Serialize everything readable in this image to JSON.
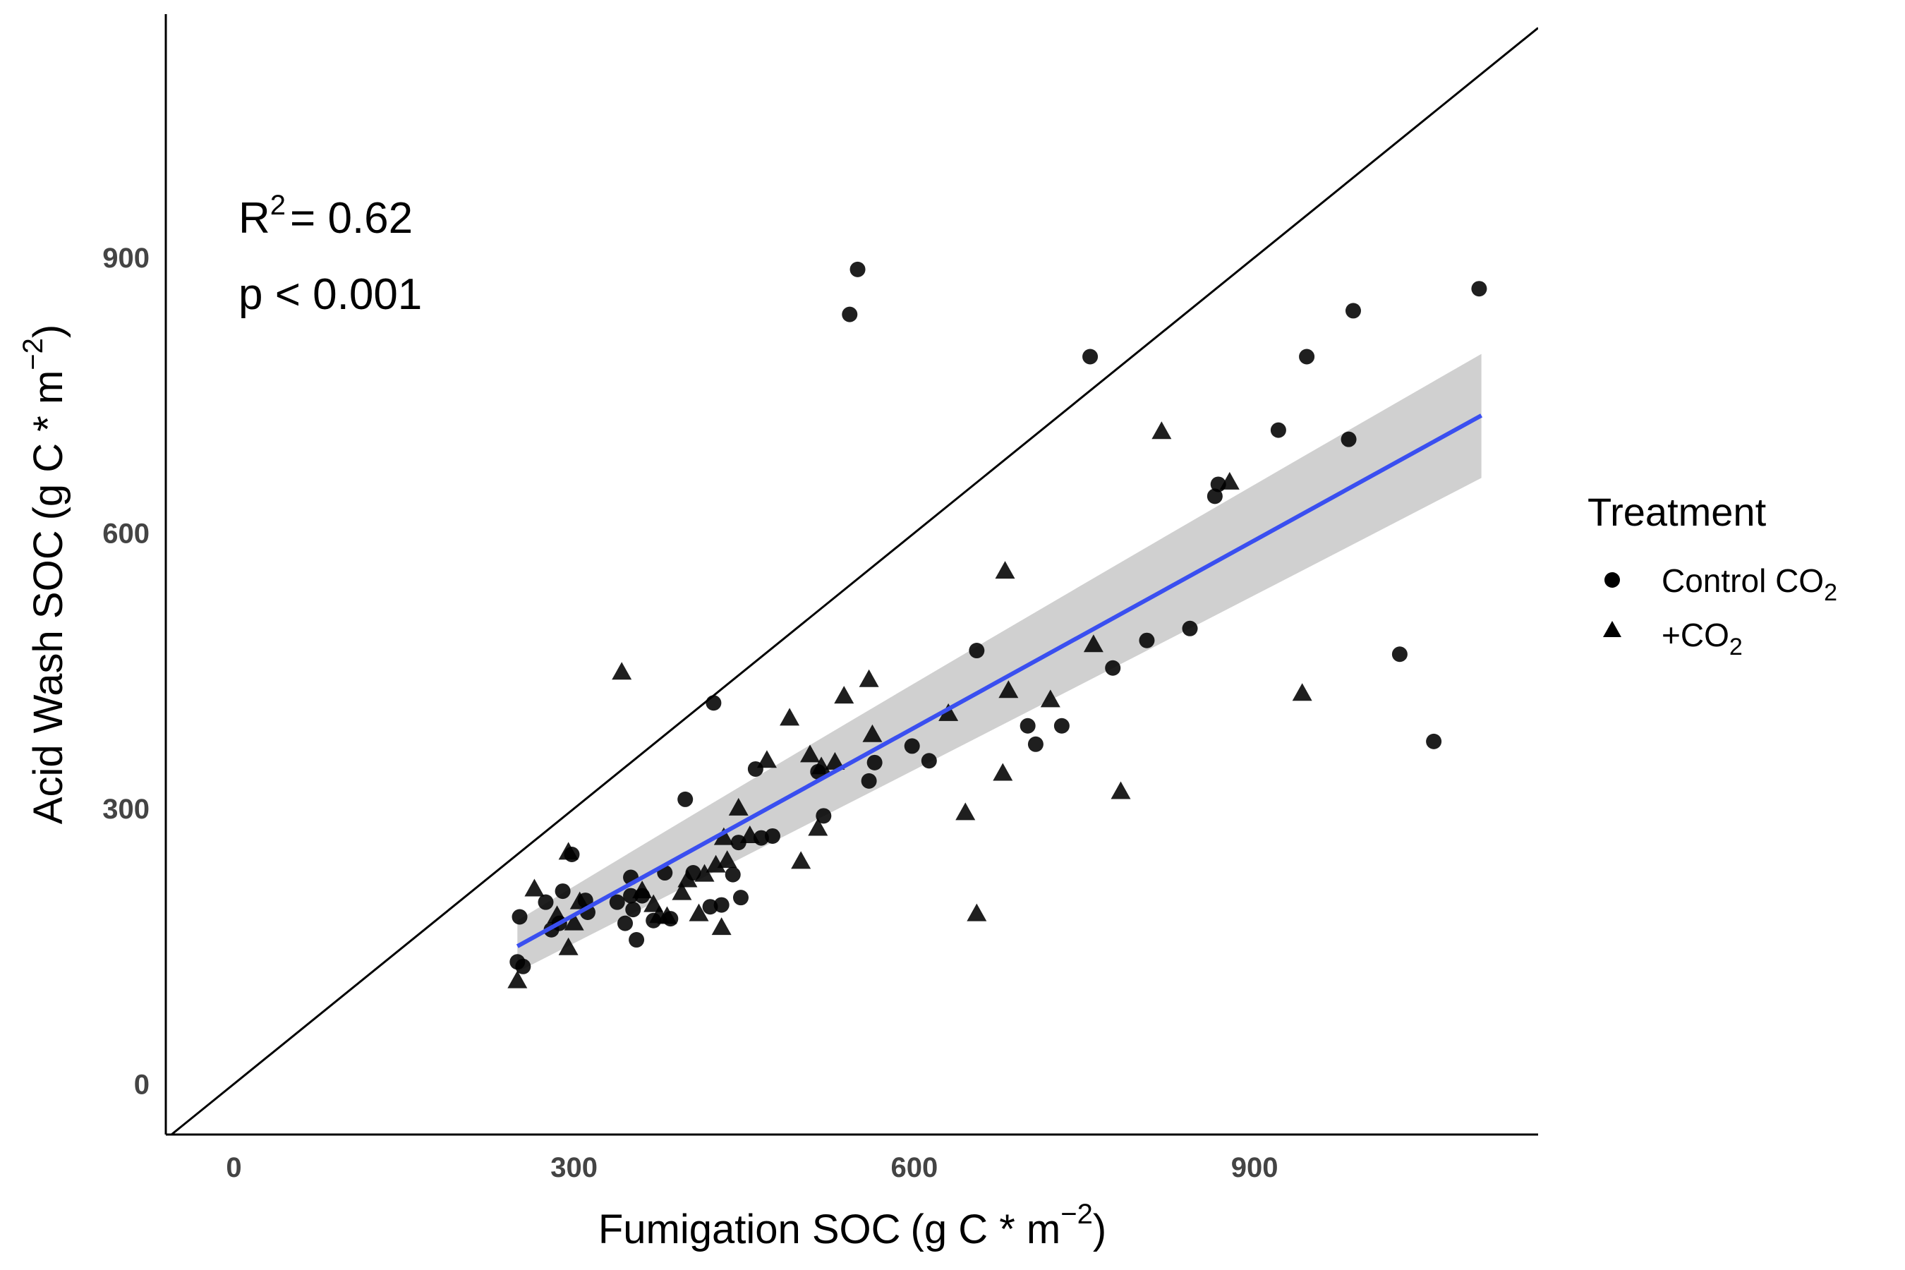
{
  "chart_data": {
    "type": "scatter",
    "title": "",
    "xlabel": {
      "main": "Fumigation SOC",
      "unit": "(g C * m",
      "exp": "−2",
      "close": ")"
    },
    "ylabel": {
      "main": "Acid Wash SOC",
      "unit": "(g C * m",
      "exp": "−2",
      "close": ")"
    },
    "xlim": [
      -60,
      1150
    ],
    "ylim": [
      -55,
      1165
    ],
    "x_ticks": [
      0,
      300,
      600,
      900
    ],
    "y_ticks": [
      0,
      300,
      600,
      900
    ],
    "grid": false,
    "legend": {
      "title": "Treatment",
      "placement": "right",
      "entries": [
        {
          "label": "Control CO",
          "sub": "2",
          "marker": "circle"
        },
        {
          "label": "+CO",
          "sub": "2",
          "marker": "triangle"
        }
      ]
    },
    "annotations": {
      "r2_label": "R",
      "r2_sup": "2",
      "r2_value": "= 0.62",
      "p_text": "p < 0.001"
    },
    "identity_line": {
      "x": [
        -60,
        1150
      ],
      "y": [
        -60,
        1150
      ]
    },
    "fit": {
      "x": [
        250,
        1100
      ],
      "y": [
        150,
        728
      ],
      "ci_lower": [
        122,
        660
      ],
      "ci_upper": [
        178,
        795
      ],
      "color": "#3a4ff0",
      "ci_color": "#d0d0d0"
    },
    "series": [
      {
        "name": "Control CO2",
        "marker": "circle",
        "color": "#000000",
        "points": [
          [
            250,
            133
          ],
          [
            255,
            128
          ],
          [
            252,
            182
          ],
          [
            275,
            198
          ],
          [
            280,
            168
          ],
          [
            287,
            175
          ],
          [
            290,
            210
          ],
          [
            298,
            250
          ],
          [
            312,
            187
          ],
          [
            310,
            200
          ],
          [
            338,
            198
          ],
          [
            345,
            175
          ],
          [
            350,
            205
          ],
          [
            350,
            225
          ],
          [
            352,
            190
          ],
          [
            355,
            157
          ],
          [
            360,
            205
          ],
          [
            370,
            178
          ],
          [
            380,
            230
          ],
          [
            385,
            180
          ],
          [
            398,
            310
          ],
          [
            405,
            230
          ],
          [
            420,
            193
          ],
          [
            430,
            195
          ],
          [
            440,
            228
          ],
          [
            445,
            263
          ],
          [
            447,
            203
          ],
          [
            423,
            415
          ],
          [
            460,
            343
          ],
          [
            465,
            268
          ],
          [
            475,
            270
          ],
          [
            520,
            292
          ],
          [
            515,
            340
          ],
          [
            543,
            838
          ],
          [
            550,
            887
          ],
          [
            560,
            330
          ],
          [
            565,
            350
          ],
          [
            598,
            368
          ],
          [
            613,
            352
          ],
          [
            655,
            472
          ],
          [
            700,
            390
          ],
          [
            707,
            370
          ],
          [
            730,
            390
          ],
          [
            755,
            792
          ],
          [
            775,
            453
          ],
          [
            805,
            483
          ],
          [
            843,
            496
          ],
          [
            865,
            640
          ],
          [
            868,
            653
          ],
          [
            921,
            712
          ],
          [
            946,
            792
          ],
          [
            983,
            702
          ],
          [
            987,
            842
          ],
          [
            1098,
            866
          ],
          [
            1028,
            468
          ],
          [
            1058,
            373
          ]
        ]
      },
      {
        "name": "+CO2",
        "marker": "triangle",
        "color": "#000000",
        "points": [
          [
            250,
            112
          ],
          [
            265,
            212
          ],
          [
            285,
            183
          ],
          [
            295,
            148
          ],
          [
            295,
            252
          ],
          [
            300,
            175
          ],
          [
            305,
            198
          ],
          [
            342,
            448
          ],
          [
            360,
            210
          ],
          [
            370,
            195
          ],
          [
            375,
            183
          ],
          [
            382,
            182
          ],
          [
            395,
            208
          ],
          [
            400,
            222
          ],
          [
            410,
            185
          ],
          [
            415,
            228
          ],
          [
            425,
            238
          ],
          [
            430,
            170
          ],
          [
            432,
            268
          ],
          [
            435,
            243
          ],
          [
            445,
            300
          ],
          [
            455,
            270
          ],
          [
            470,
            352
          ],
          [
            490,
            398
          ],
          [
            500,
            242
          ],
          [
            508,
            358
          ],
          [
            515,
            278
          ],
          [
            518,
            345
          ],
          [
            530,
            350
          ],
          [
            538,
            422
          ],
          [
            560,
            440
          ],
          [
            563,
            380
          ],
          [
            630,
            403
          ],
          [
            645,
            295
          ],
          [
            655,
            185
          ],
          [
            678,
            338
          ],
          [
            680,
            558
          ],
          [
            683,
            428
          ],
          [
            720,
            418
          ],
          [
            758,
            478
          ],
          [
            782,
            318
          ],
          [
            818,
            710
          ],
          [
            878,
            655
          ],
          [
            942,
            425
          ]
        ]
      }
    ]
  }
}
